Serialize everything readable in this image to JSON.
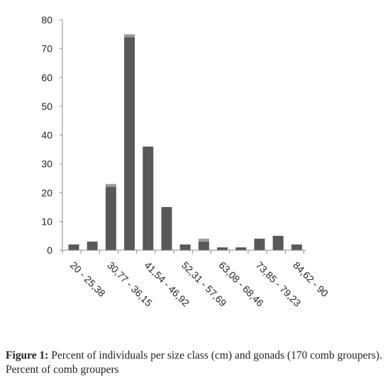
{
  "chart_data": {
    "type": "bar",
    "categories": [
      "20 - 25,38",
      "",
      "30,77 - 36,15",
      "",
      "41,54 - 46,92",
      "",
      "52,31 - 57,69",
      "",
      "63,08 - 68,46",
      "",
      "73,85 - 79,23",
      "",
      "84,62 - 90"
    ],
    "series": [
      {
        "values": [
          2,
          3,
          22,
          74,
          36,
          15,
          2,
          3,
          1,
          1,
          4,
          5,
          2
        ]
      },
      {
        "values": [
          0,
          0,
          1,
          1,
          0,
          0,
          0,
          1,
          0,
          0,
          0,
          0,
          0
        ]
      }
    ],
    "ylim": [
      0,
      80
    ],
    "yticks": [
      0,
      10,
      20,
      30,
      40,
      50,
      60,
      70,
      80
    ],
    "stacked": true,
    "grid": false,
    "colors": {
      "primary": "#595959",
      "secondary": "#9a9a9a"
    }
  },
  "caption": {
    "label": "Figure 1:",
    "text": " Percent of individuals per size class (cm) and gonads (170 comb groupers). Percent of comb groupers"
  }
}
